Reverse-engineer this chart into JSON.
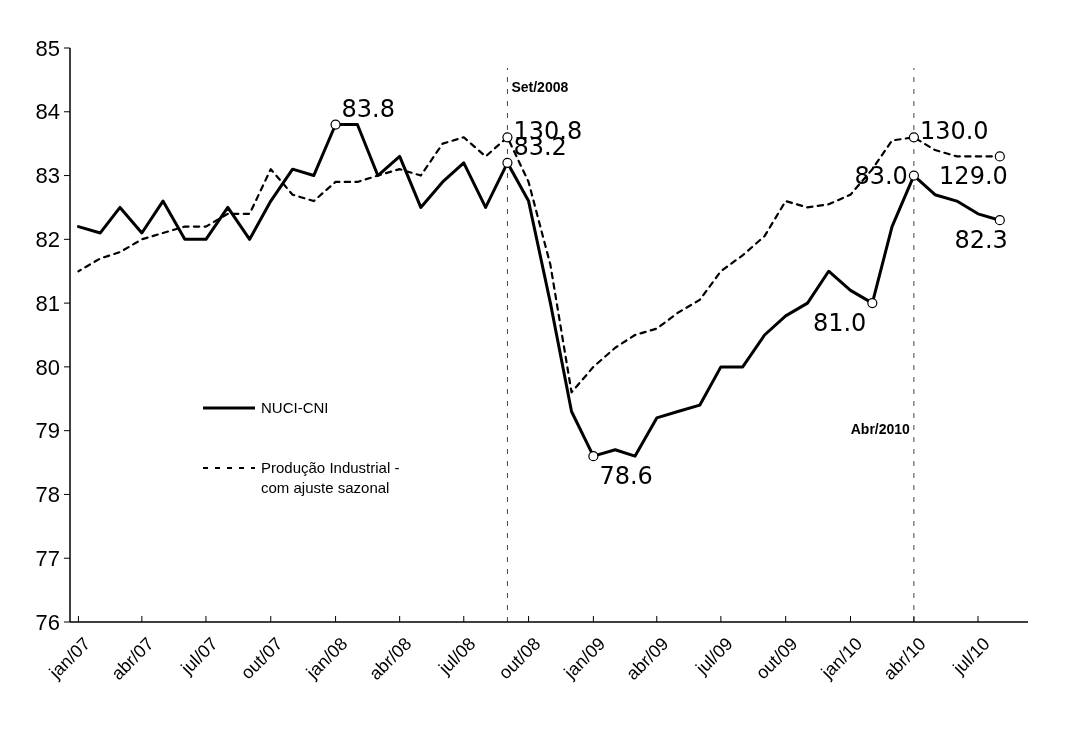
{
  "chart_data": {
    "type": "line",
    "x": [
      "2007-01",
      "2007-02",
      "2007-03",
      "2007-04",
      "2007-05",
      "2007-06",
      "2007-07",
      "2007-08",
      "2007-09",
      "2007-10",
      "2007-11",
      "2007-12",
      "2008-01",
      "2008-02",
      "2008-03",
      "2008-04",
      "2008-05",
      "2008-06",
      "2008-07",
      "2008-08",
      "2008-09",
      "2008-10",
      "2008-11",
      "2008-12",
      "2009-01",
      "2009-02",
      "2009-03",
      "2009-04",
      "2009-05",
      "2009-06",
      "2009-07",
      "2009-08",
      "2009-09",
      "2009-10",
      "2009-11",
      "2009-12",
      "2010-01",
      "2010-02",
      "2010-03",
      "2010-04",
      "2010-05",
      "2010-06",
      "2010-07",
      "2010-08"
    ],
    "series": [
      {
        "name": "NUCI-CNI",
        "color": "#000000",
        "line_style": "solid",
        "values": [
          82.2,
          82.1,
          82.5,
          82.1,
          82.6,
          82.0,
          82.0,
          82.5,
          82.0,
          82.6,
          83.1,
          83.0,
          83.8,
          83.8,
          83.0,
          83.3,
          82.5,
          82.9,
          83.2,
          82.5,
          83.2,
          82.6,
          81.0,
          79.3,
          78.6,
          78.7,
          78.6,
          79.2,
          79.3,
          79.4,
          80.0,
          80.0,
          80.5,
          80.8,
          81.0,
          81.5,
          81.2,
          81.0,
          82.2,
          83.0,
          82.7,
          82.6,
          82.4,
          82.3
        ],
        "value_labels": [
          null,
          null,
          null,
          null,
          null,
          null,
          null,
          null,
          null,
          null,
          null,
          null,
          "83.8",
          null,
          null,
          null,
          null,
          null,
          null,
          null,
          "83.2",
          null,
          null,
          null,
          "78.6",
          null,
          null,
          null,
          null,
          null,
          null,
          null,
          null,
          null,
          null,
          null,
          null,
          "81.0",
          null,
          "83.0",
          null,
          null,
          null,
          "82.3"
        ]
      },
      {
        "name": "Produção Industrial - com ajuste sazonal",
        "color": "#000000",
        "line_style": "dashed",
        "values": [
          81.5,
          81.7,
          81.8,
          82.0,
          82.1,
          82.2,
          82.2,
          82.4,
          82.4,
          83.1,
          82.7,
          82.6,
          82.9,
          82.9,
          83.0,
          83.1,
          83.0,
          83.5,
          83.6,
          83.3,
          83.6,
          82.9,
          81.6,
          79.6,
          80.0,
          80.3,
          80.5,
          80.6,
          80.85,
          81.05,
          81.5,
          81.75,
          82.05,
          82.6,
          82.5,
          82.55,
          82.7,
          83.1,
          83.55,
          83.6,
          83.4,
          83.3,
          83.3,
          83.3
        ]
      }
    ],
    "xlim": [
      "2006-12-20",
      "2010-09-10"
    ],
    "xticks": [
      {
        "value": "2007-01",
        "label": "jan/07"
      },
      {
        "value": "2007-04",
        "label": "abr/07"
      },
      {
        "value": "2007-07",
        "label": "jul/07"
      },
      {
        "value": "2007-10",
        "label": "out/07"
      },
      {
        "value": "2008-01",
        "label": "jan/08"
      },
      {
        "value": "2008-04",
        "label": "abr/08"
      },
      {
        "value": "2008-07",
        "label": "jul/08"
      },
      {
        "value": "2008-10",
        "label": "out/08"
      },
      {
        "value": "2009-01",
        "label": "jan/09"
      },
      {
        "value": "2009-04",
        "label": "abr/09"
      },
      {
        "value": "2009-07",
        "label": "jul/09"
      },
      {
        "value": "2009-10",
        "label": "out/09"
      },
      {
        "value": "2010-01",
        "label": "jan/10"
      },
      {
        "value": "2010-04",
        "label": "abr/10"
      },
      {
        "value": "2010-07",
        "label": "jul/10"
      }
    ],
    "ylim": [
      76,
      85
    ],
    "yticks": [
      76,
      77,
      78,
      79,
      80,
      81,
      82,
      83,
      84,
      85
    ],
    "grid": false,
    "legend": "left",
    "marker": "none",
    "ref_lines": [
      {
        "axis": "x",
        "value": "2008-09",
        "label": "Set/2008",
        "line_style": "dashed"
      },
      {
        "axis": "x",
        "value": "2010-04",
        "label": "Abr/2010",
        "line_style": "dashed"
      }
    ],
    "annotations": [
      {
        "text": "130.8",
        "x": "2008-09",
        "y": 83.6
      },
      {
        "text": "130.0",
        "x": "2010-04",
        "y": 83.6
      },
      {
        "text": "129.0",
        "x": "2010-08",
        "y": 83.3
      }
    ]
  }
}
